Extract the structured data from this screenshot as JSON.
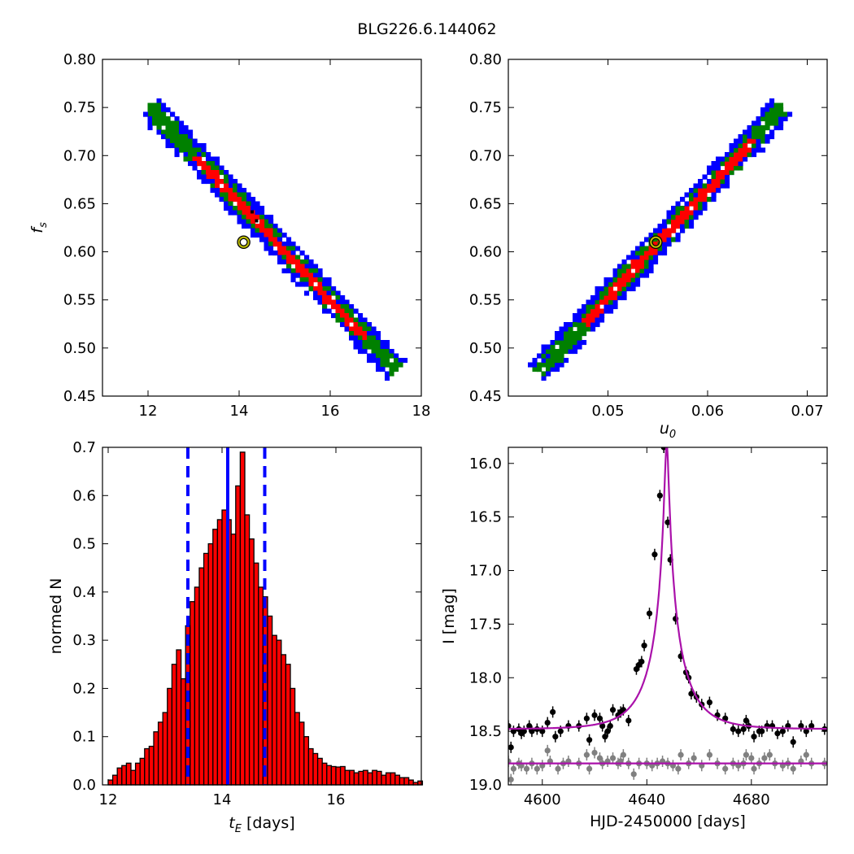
{
  "figure_title": "BLG226.6.144062",
  "chart_data": [
    {
      "id": "fs-vs-tE",
      "type": "heatmap",
      "xlabel": "",
      "ylabel": "f_s",
      "xlim": [
        11,
        18
      ],
      "ylim": [
        0.45,
        0.8
      ],
      "xticks": [
        12,
        14,
        16,
        18
      ],
      "yticks": [
        0.45,
        0.5,
        0.55,
        0.6,
        0.65,
        0.7,
        0.75,
        0.8
      ],
      "ytick_labels": [
        "0.45",
        "0.50",
        "0.55",
        "0.60",
        "0.65",
        "0.70",
        "0.75",
        "0.80"
      ],
      "band_axis": {
        "x": [
          12.0,
          17.4
        ],
        "y": [
          0.752,
          0.478
        ]
      },
      "contour_colors": [
        "#0000ff",
        "#008000",
        "#ff0000",
        "#000000"
      ],
      "best_fit": {
        "x": 14.1,
        "y": 0.61
      }
    },
    {
      "id": "fs-vs-u0",
      "type": "heatmap",
      "xlabel": "u_0",
      "ylabel": "",
      "xlim": [
        0.04,
        0.072
      ],
      "ylim": [
        0.45,
        0.8
      ],
      "xticks": [
        0.05,
        0.06,
        0.07
      ],
      "xtick_labels": [
        "0.05",
        "0.06",
        "0.07"
      ],
      "yticks": [
        0.45,
        0.5,
        0.55,
        0.6,
        0.65,
        0.7,
        0.75,
        0.8
      ],
      "ytick_labels": [
        "0.45",
        "0.50",
        "0.55",
        "0.60",
        "0.65",
        "0.70",
        "0.75",
        "0.80"
      ],
      "band_axis": {
        "x": [
          0.0429,
          0.0674
        ],
        "y": [
          0.477,
          0.753
        ]
      },
      "contour_colors": [
        "#0000ff",
        "#008000",
        "#ff0000",
        "#000000"
      ],
      "best_fit": {
        "x": 0.0548,
        "y": 0.61
      }
    },
    {
      "id": "tE-histogram",
      "type": "bar",
      "xlabel": "t_E [days]",
      "xlabel_unit": "[days]",
      "ylabel": "normed N",
      "xlim": [
        11.9,
        17.5
      ],
      "ylim": [
        0.0,
        0.7
      ],
      "xticks": [
        12,
        14,
        16
      ],
      "yticks": [
        0.0,
        0.1,
        0.2,
        0.3,
        0.4,
        0.5,
        0.6,
        0.7
      ],
      "ytick_labels": [
        "0.0",
        "0.1",
        "0.2",
        "0.3",
        "0.4",
        "0.5",
        "0.6",
        "0.7"
      ],
      "bin_start": 12.0,
      "bin_width": 0.08,
      "values": [
        0.01,
        0.02,
        0.035,
        0.04,
        0.045,
        0.03,
        0.045,
        0.055,
        0.075,
        0.08,
        0.11,
        0.13,
        0.15,
        0.2,
        0.25,
        0.28,
        0.22,
        0.33,
        0.38,
        0.41,
        0.45,
        0.48,
        0.5,
        0.53,
        0.55,
        0.57,
        0.55,
        0.52,
        0.62,
        0.69,
        0.56,
        0.51,
        0.46,
        0.41,
        0.39,
        0.35,
        0.31,
        0.3,
        0.27,
        0.25,
        0.2,
        0.15,
        0.13,
        0.1,
        0.075,
        0.065,
        0.055,
        0.045,
        0.04,
        0.038,
        0.037,
        0.038,
        0.03,
        0.03,
        0.025,
        0.028,
        0.03,
        0.025,
        0.03,
        0.028,
        0.02,
        0.025,
        0.025,
        0.02,
        0.015,
        0.015,
        0.01,
        0.005,
        0.008
      ],
      "bar_color": "#ff0000",
      "best_fit_line": 14.1,
      "confidence_lines": [
        13.4,
        14.75
      ],
      "line_color": "#0000ff"
    },
    {
      "id": "light-curve",
      "type": "scatter",
      "xlabel": "HJD-2450000 [days]",
      "ylabel": "I [mag]",
      "xlim": [
        4587,
        4709
      ],
      "ylim": [
        19.0,
        15.85
      ],
      "xticks": [
        4600,
        4640,
        4680
      ],
      "yticks": [
        16.0,
        16.5,
        17.0,
        17.5,
        18.0,
        18.5,
        19.0
      ],
      "ytick_labels": [
        "16.0",
        "16.5",
        "17.0",
        "17.5",
        "18.0",
        "18.5",
        "19.0"
      ],
      "model": {
        "t0": 4647.6,
        "tE": 14.1,
        "u0": 0.0548,
        "fs": 0.61,
        "baseline": 18.48
      },
      "model_color": "#aa11aa",
      "residual_offset": 18.8,
      "series": [
        {
          "role": "data",
          "color": "#000000",
          "points": [
            [
              4587,
              18.45
            ],
            [
              4588,
              18.65
            ],
            [
              4589,
              18.5
            ],
            [
              4591,
              18.48
            ],
            [
              4592,
              18.52
            ],
            [
              4593,
              18.5
            ],
            [
              4595,
              18.45
            ],
            [
              4596,
              18.5
            ],
            [
              4598,
              18.48
            ],
            [
              4600,
              18.5
            ],
            [
              4602,
              18.42
            ],
            [
              4604,
              18.32
            ],
            [
              4605,
              18.55
            ],
            [
              4607,
              18.5
            ],
            [
              4610,
              18.45
            ],
            [
              4614,
              18.45
            ],
            [
              4617,
              18.38
            ],
            [
              4618,
              18.58
            ],
            [
              4620,
              18.35
            ],
            [
              4622,
              18.38
            ],
            [
              4623,
              18.45
            ],
            [
              4624,
              18.55
            ],
            [
              4625,
              18.5
            ],
            [
              4626,
              18.45
            ],
            [
              4627,
              18.3
            ],
            [
              4629,
              18.35
            ],
            [
              4630,
              18.32
            ],
            [
              4631,
              18.3
            ],
            [
              4633,
              18.4
            ],
            [
              4636,
              17.92
            ],
            [
              4637,
              17.88
            ],
            [
              4638,
              17.85
            ],
            [
              4639,
              17.7
            ],
            [
              4641,
              17.4
            ],
            [
              4643,
              16.85
            ],
            [
              4645,
              16.3
            ],
            [
              4646.5,
              15.85
            ],
            [
              4648,
              16.55
            ],
            [
              4649,
              16.9
            ],
            [
              4651,
              17.45
            ],
            [
              4653,
              17.8
            ],
            [
              4655,
              17.95
            ],
            [
              4656,
              18.0
            ],
            [
              4657,
              18.15
            ],
            [
              4659,
              18.18
            ],
            [
              4661,
              18.25
            ],
            [
              4664,
              18.23
            ],
            [
              4667,
              18.35
            ],
            [
              4670,
              18.38
            ],
            [
              4673,
              18.48
            ],
            [
              4675,
              18.5
            ],
            [
              4677,
              18.48
            ],
            [
              4678,
              18.4
            ],
            [
              4679,
              18.45
            ],
            [
              4681,
              18.55
            ],
            [
              4683,
              18.5
            ],
            [
              4684,
              18.5
            ],
            [
              4686,
              18.45
            ],
            [
              4688,
              18.45
            ],
            [
              4690,
              18.52
            ],
            [
              4692,
              18.5
            ],
            [
              4694,
              18.45
            ],
            [
              4696,
              18.6
            ],
            [
              4699,
              18.45
            ],
            [
              4701,
              18.5
            ],
            [
              4703,
              18.45
            ],
            [
              4708,
              18.48
            ]
          ]
        },
        {
          "role": "residuals",
          "color": "#808080",
          "points": [
            [
              4587,
              18.78
            ],
            [
              4588,
              18.95
            ],
            [
              4589,
              18.85
            ],
            [
              4591,
              18.8
            ],
            [
              4592,
              18.82
            ],
            [
              4594,
              18.85
            ],
            [
              4596,
              18.8
            ],
            [
              4598,
              18.85
            ],
            [
              4600,
              18.82
            ],
            [
              4602,
              18.68
            ],
            [
              4603,
              18.78
            ],
            [
              4606,
              18.85
            ],
            [
              4608,
              18.8
            ],
            [
              4610,
              18.78
            ],
            [
              4614,
              18.8
            ],
            [
              4617,
              18.72
            ],
            [
              4618,
              18.85
            ],
            [
              4620,
              18.7
            ],
            [
              4622,
              18.75
            ],
            [
              4623,
              18.8
            ],
            [
              4625,
              18.78
            ],
            [
              4627,
              18.75
            ],
            [
              4629,
              18.8
            ],
            [
              4630,
              18.78
            ],
            [
              4631,
              18.72
            ],
            [
              4633,
              18.8
            ],
            [
              4635,
              18.9
            ],
            [
              4637,
              18.8
            ],
            [
              4640,
              18.8
            ],
            [
              4642,
              18.82
            ],
            [
              4644,
              18.8
            ],
            [
              4646,
              18.78
            ],
            [
              4648,
              18.8
            ],
            [
              4650,
              18.82
            ],
            [
              4652,
              18.85
            ],
            [
              4653,
              18.72
            ],
            [
              4656,
              18.8
            ],
            [
              4658,
              18.75
            ],
            [
              4661,
              18.82
            ],
            [
              4664,
              18.72
            ],
            [
              4667,
              18.8
            ],
            [
              4670,
              18.85
            ],
            [
              4673,
              18.8
            ],
            [
              4675,
              18.82
            ],
            [
              4677,
              18.8
            ],
            [
              4678,
              18.72
            ],
            [
              4680,
              18.75
            ],
            [
              4681,
              18.85
            ],
            [
              4683,
              18.8
            ],
            [
              4685,
              18.75
            ],
            [
              4687,
              18.72
            ],
            [
              4689,
              18.8
            ],
            [
              4692,
              18.82
            ],
            [
              4694,
              18.8
            ],
            [
              4696,
              18.85
            ],
            [
              4699,
              18.78
            ],
            [
              4701,
              18.72
            ],
            [
              4703,
              18.8
            ],
            [
              4708,
              18.8
            ]
          ]
        }
      ]
    }
  ]
}
